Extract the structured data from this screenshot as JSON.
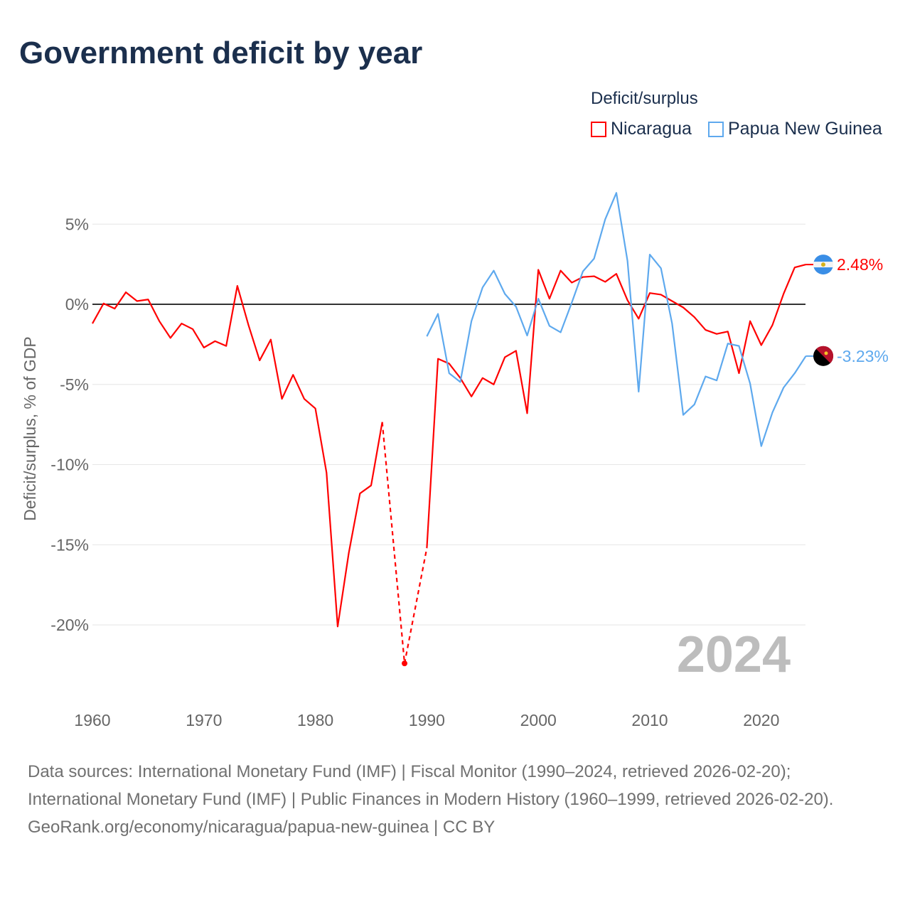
{
  "chart_data": {
    "type": "line",
    "title": "Government deficit by year",
    "ylabel": "Deficit/surplus, % of GDP",
    "xlabel": "",
    "xlim": [
      1960,
      2024
    ],
    "ylim": [
      -23,
      7
    ],
    "x_ticks": [
      "1960",
      "1970",
      "1980",
      "1990",
      "2000",
      "2010",
      "2020"
    ],
    "y_ticks": [
      {
        "v": 5,
        "label": "5%"
      },
      {
        "v": 0,
        "label": "0%"
      },
      {
        "v": -5,
        "label": "-5%"
      },
      {
        "v": -10,
        "label": "-10%"
      },
      {
        "v": -15,
        "label": "-15%"
      },
      {
        "v": -20,
        "label": "-20%"
      }
    ],
    "grid": true,
    "legend_title": "Deficit/surplus",
    "legend_position": "top-right",
    "year_watermark": "2024",
    "series": [
      {
        "name": "Nicaragua",
        "color": "#ff0000",
        "end_label": "2.48%",
        "start": 1960,
        "values": [
          -1.2,
          0.05,
          -0.27,
          0.75,
          0.2,
          0.3,
          -1.05,
          -2.1,
          -1.2,
          -1.55,
          -2.7,
          -2.3,
          -2.6,
          1.15,
          -1.3,
          -3.5,
          -2.2,
          -5.9,
          -4.4,
          -5.9,
          -6.5,
          -10.5,
          -20.1,
          -15.5,
          -11.8,
          -11.3,
          -7.35,
          null,
          -22.4,
          null,
          -15.2,
          -3.4,
          -3.7,
          -4.6,
          -5.75,
          -4.6,
          -5.0,
          -3.3,
          -2.9,
          -6.8,
          2.15,
          0.35,
          2.1,
          1.35,
          1.7,
          1.75,
          1.4,
          1.9,
          0.25,
          -0.9,
          0.7,
          0.6,
          0.2,
          -0.2,
          -0.8,
          -1.6,
          -1.85,
          -1.7,
          -4.3,
          -1.05,
          -2.55,
          -1.3,
          0.65,
          2.3,
          2.48
        ]
      },
      {
        "name": "Papua New Guinea",
        "color": "#5ea9ee",
        "end_label": "-3.23%",
        "start": 1990,
        "values": [
          -2.0,
          -0.6,
          -4.3,
          -4.85,
          -1.05,
          1.05,
          2.1,
          0.65,
          -0.15,
          -1.95,
          0.35,
          -1.35,
          -1.75,
          0.1,
          2.05,
          2.85,
          5.3,
          6.95,
          2.7,
          -5.45,
          3.1,
          2.25,
          -1.2,
          -6.9,
          -6.25,
          -4.5,
          -4.75,
          -2.45,
          -2.6,
          -4.95,
          -8.85,
          -6.75,
          -5.2,
          -4.3,
          -3.23
        ]
      }
    ]
  },
  "footer": {
    "sources": "Data sources: International Monetary Fund (IMF) | Fiscal Monitor (1990–2024, retrieved 2026-02-20); International Monetary Fund (IMF) | Public Finances in Modern History (1960–1999, retrieved 2026-02-20).",
    "credit": "GeoRank.org/economy/nicaragua/papua-new-guinea | CC BY"
  }
}
